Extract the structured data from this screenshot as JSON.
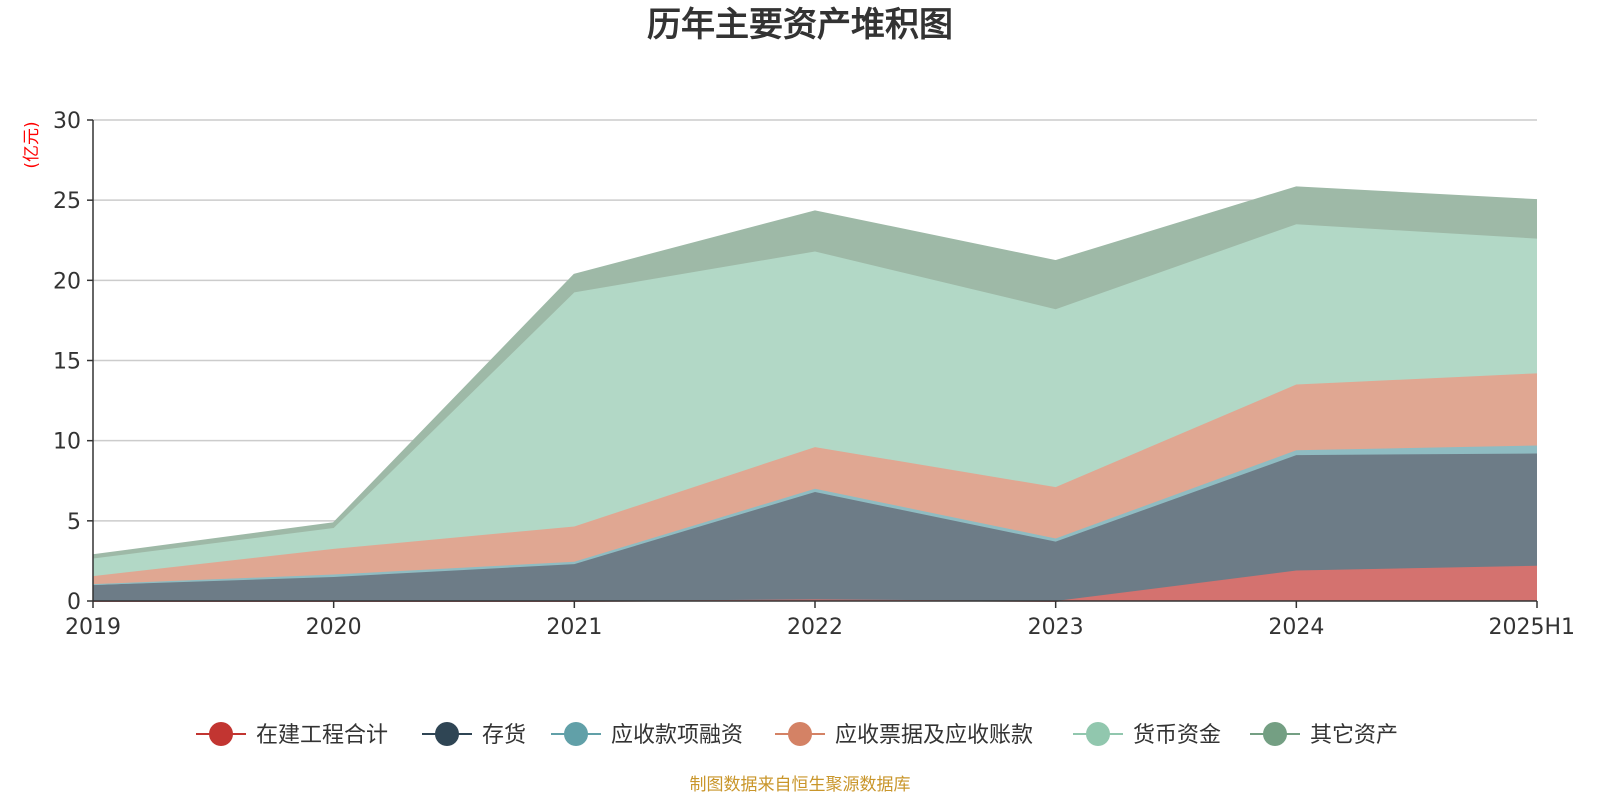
{
  "chart_data": {
    "type": "area",
    "stacked": true,
    "title": "历年主要资产堆积图",
    "unit_label": "(亿元)",
    "source": "制图数据来自恒生聚源数据库",
    "categories": [
      "2019",
      "2020",
      "2021",
      "2022",
      "2023",
      "2024",
      "2025H1"
    ],
    "ylim": [
      0,
      30
    ],
    "yticks": [
      "0",
      "5",
      "10",
      "15",
      "20",
      "25",
      "30"
    ],
    "grid": true,
    "legend_position": "bottom",
    "series": [
      {
        "name": "在建工程合计",
        "color": "#c23531",
        "fill": "#d4726f",
        "values": [
          0,
          0,
          0,
          0.1,
          0,
          1.9,
          2.2
        ]
      },
      {
        "name": "存货",
        "color": "#2f4554",
        "fill": "#6d7c87",
        "values": [
          1.0,
          1.5,
          2.3,
          6.7,
          3.7,
          7.2,
          7.0
        ]
      },
      {
        "name": "应收款项融资",
        "color": "#61a0a8",
        "fill": "#8fbcc2",
        "values": [
          0.05,
          0.15,
          0.15,
          0.2,
          0.2,
          0.3,
          0.5
        ]
      },
      {
        "name": "应收票据及应收账款",
        "color": "#d48265",
        "fill": "#e0a792",
        "values": [
          0.5,
          1.6,
          2.2,
          2.6,
          3.2,
          4.1,
          4.5
        ]
      },
      {
        "name": "货币资金",
        "color": "#91c7ae",
        "fill": "#b2d8c6",
        "values": [
          1.1,
          1.3,
          14.6,
          12.2,
          11.1,
          10.0,
          8.4
        ]
      },
      {
        "name": "其它资产",
        "color": "#749f83",
        "fill": "#9eb9a7",
        "values": [
          0.2,
          0.3,
          1.1,
          2.5,
          3.0,
          2.3,
          2.4
        ]
      }
    ]
  }
}
